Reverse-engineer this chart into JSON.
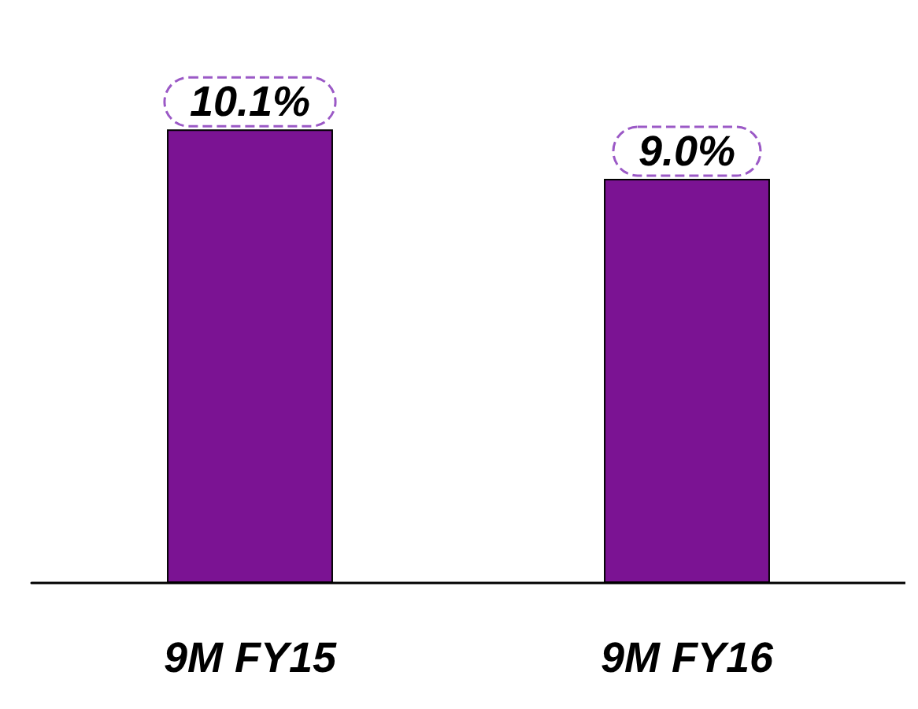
{
  "chart_data": {
    "type": "bar",
    "categories": [
      "9M FY15",
      "9M FY16"
    ],
    "values": [
      10.1,
      9.0
    ],
    "value_labels": [
      "10.1%",
      "9.0%"
    ],
    "color": "#7b1393"
  }
}
